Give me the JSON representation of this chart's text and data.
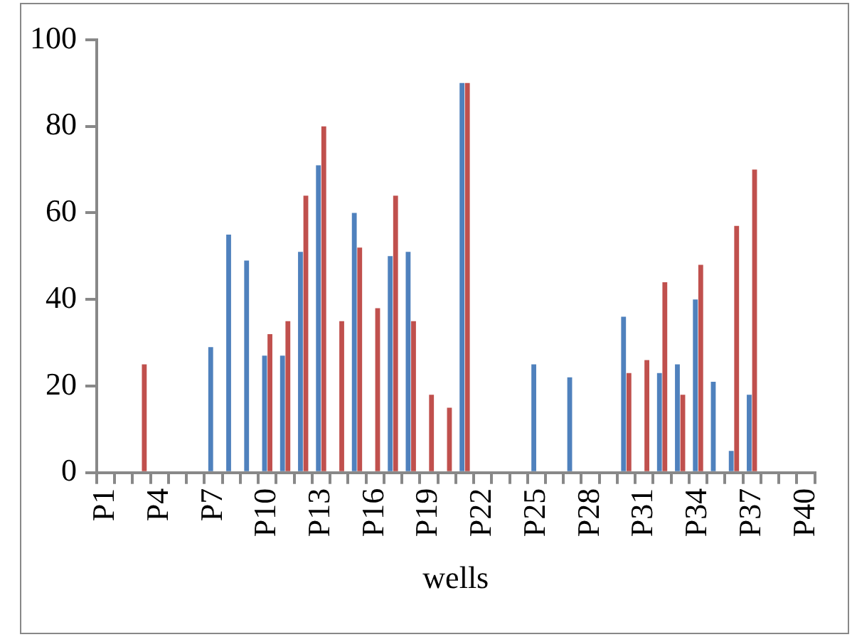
{
  "chart_data": {
    "type": "bar",
    "xlabel": "wells",
    "categories": [
      "P1",
      null,
      null,
      "P4",
      null,
      null,
      "P7",
      null,
      null,
      "P10",
      null,
      null,
      "P13",
      null,
      null,
      "P16",
      null,
      null,
      "P19",
      null,
      null,
      "P22",
      null,
      null,
      "P25",
      null,
      null,
      "P28",
      null,
      null,
      "P31",
      null,
      null,
      "P34",
      null,
      null,
      "P37",
      null,
      null,
      "P40"
    ],
    "series": [
      {
        "color": "#4f81bd",
        "values": [
          null,
          null,
          null,
          null,
          null,
          null,
          29,
          55,
          49,
          27,
          27,
          51,
          71,
          null,
          60,
          null,
          50,
          51,
          null,
          null,
          90,
          null,
          null,
          null,
          25,
          null,
          22,
          null,
          null,
          36,
          null,
          23,
          25,
          40,
          21,
          5,
          18,
          null,
          null,
          null
        ]
      },
      {
        "color": "#c0504d",
        "values": [
          null,
          null,
          25,
          null,
          null,
          null,
          null,
          null,
          null,
          32,
          35,
          64,
          80,
          35,
          52,
          38,
          64,
          35,
          18,
          15,
          90,
          null,
          null,
          null,
          null,
          null,
          null,
          null,
          null,
          23,
          26,
          44,
          18,
          48,
          null,
          57,
          70,
          null,
          null,
          null
        ]
      }
    ],
    "ylim": [
      0,
      100
    ],
    "yticks": [
      0,
      20,
      40,
      60,
      80,
      100
    ],
    "grid": false,
    "legend": false
  }
}
